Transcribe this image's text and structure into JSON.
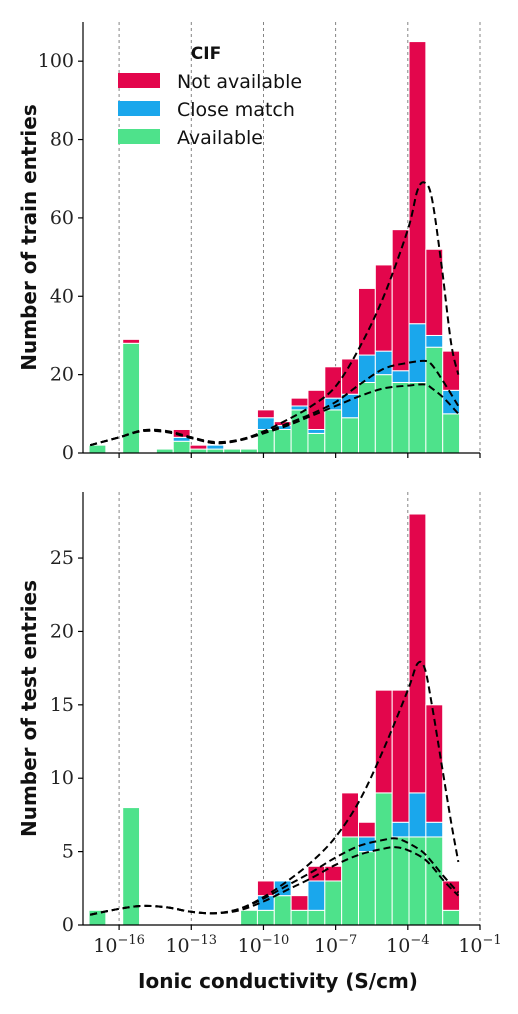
{
  "chart_data": {
    "type": "bar",
    "stacked": true,
    "x_scale": "log",
    "xlabel": "Ionic conductivity (S/cm)",
    "x_ticks": [
      {
        "exp": -16,
        "base": "10",
        "sup": "−16"
      },
      {
        "exp": -13,
        "base": "10",
        "sup": "−13"
      },
      {
        "exp": -10,
        "base": "10",
        "sup": "−10"
      },
      {
        "exp": -7,
        "base": "10",
        "sup": "−7"
      },
      {
        "exp": -4,
        "base": "10",
        "sup": "−4"
      },
      {
        "exp": -1,
        "base": "10",
        "sup": "−1"
      }
    ],
    "xlim_exp": [
      -17.5,
      -1
    ],
    "bin_width_exp": 0.7,
    "colors": {
      "not_available": "#e3064c",
      "close_match": "#1aa7ec",
      "available": "#4ee28b"
    },
    "legend": {
      "title": "CIF",
      "position": "upper-left",
      "entries": [
        {
          "key": "not_available",
          "label": "Not available"
        },
        {
          "key": "close_match",
          "label": "Close match"
        },
        {
          "key": "available",
          "label": "Available"
        }
      ]
    },
    "panels": [
      {
        "ylabel": "Number of train entries",
        "ylim": [
          0,
          110
        ],
        "yticks": [
          0,
          20,
          40,
          60,
          80,
          100
        ],
        "grid": "vertical dashed at x ticks",
        "bins": [
          {
            "x": -16.9,
            "available": 2,
            "close_match": 0,
            "not_available": 0
          },
          {
            "x": -15.5,
            "available": 28,
            "close_match": 0,
            "not_available": 1
          },
          {
            "x": -14.1,
            "available": 1,
            "close_match": 0,
            "not_available": 0
          },
          {
            "x": -13.4,
            "available": 3,
            "close_match": 1,
            "not_available": 2
          },
          {
            "x": -12.7,
            "available": 1,
            "close_match": 0,
            "not_available": 1
          },
          {
            "x": -12.0,
            "available": 1,
            "close_match": 1,
            "not_available": 0
          },
          {
            "x": -11.3,
            "available": 1,
            "close_match": 0,
            "not_available": 0
          },
          {
            "x": -10.6,
            "available": 1,
            "close_match": 0,
            "not_available": 0
          },
          {
            "x": -9.9,
            "available": 6,
            "close_match": 3,
            "not_available": 2
          },
          {
            "x": -9.2,
            "available": 6,
            "close_match": 1,
            "not_available": 1
          },
          {
            "x": -8.5,
            "available": 11,
            "close_match": 1,
            "not_available": 2
          },
          {
            "x": -7.8,
            "available": 5,
            "close_match": 1,
            "not_available": 10
          },
          {
            "x": -7.1,
            "available": 11,
            "close_match": 3,
            "not_available": 8
          },
          {
            "x": -6.4,
            "available": 9,
            "close_match": 6,
            "not_available": 9
          },
          {
            "x": -5.7,
            "available": 18,
            "close_match": 7,
            "not_available": 17
          },
          {
            "x": -5.0,
            "available": 20,
            "close_match": 6,
            "not_available": 22
          },
          {
            "x": -4.3,
            "available": 18,
            "close_match": 3,
            "not_available": 36
          },
          {
            "x": -3.6,
            "available": 18,
            "close_match": 15,
            "not_available": 72
          },
          {
            "x": -2.9,
            "available": 27,
            "close_match": 3,
            "not_available": 22
          },
          {
            "x": -2.2,
            "available": 10,
            "close_match": 6,
            "not_available": 10
          }
        ],
        "kde_curves": [
          {
            "name": "total",
            "points": [
              [
                -17.2,
                2
              ],
              [
                -16,
                4
              ],
              [
                -15,
                5.8
              ],
              [
                -14,
                5.5
              ],
              [
                -13,
                4
              ],
              [
                -12,
                2.5
              ],
              [
                -11,
                3.3
              ],
              [
                -10,
                5.5
              ],
              [
                -9,
                8.5
              ],
              [
                -8,
                12
              ],
              [
                -7,
                17
              ],
              [
                -6,
                27
              ],
              [
                -5,
                40
              ],
              [
                -4,
                57
              ],
              [
                -3.6,
                67
              ],
              [
                -3.3,
                69
              ],
              [
                -3,
                65
              ],
              [
                -2.6,
                48
              ],
              [
                -2.2,
                28
              ],
              [
                -1.9,
                20
              ]
            ]
          },
          {
            "name": "available_close",
            "points": [
              [
                -17.2,
                2
              ],
              [
                -16,
                4
              ],
              [
                -15,
                5.8
              ],
              [
                -14,
                5.6
              ],
              [
                -13,
                4
              ],
              [
                -12,
                2.8
              ],
              [
                -11,
                3.4
              ],
              [
                -10,
                5.2
              ],
              [
                -9,
                7.5
              ],
              [
                -8,
                10
              ],
              [
                -7,
                13
              ],
              [
                -6,
                17.5
              ],
              [
                -5,
                21.5
              ],
              [
                -4,
                23
              ],
              [
                -3.3,
                23.5
              ],
              [
                -3,
                22.5
              ],
              [
                -2.5,
                18
              ],
              [
                -1.9,
                12
              ]
            ]
          },
          {
            "name": "available",
            "points": [
              [
                -17.2,
                2
              ],
              [
                -16,
                4
              ],
              [
                -15,
                5.6
              ],
              [
                -14,
                5.3
              ],
              [
                -13,
                3.8
              ],
              [
                -12,
                2.5
              ],
              [
                -11,
                3.2
              ],
              [
                -10,
                5
              ],
              [
                -9,
                7
              ],
              [
                -8,
                9.5
              ],
              [
                -7,
                12
              ],
              [
                -6,
                14.5
              ],
              [
                -5,
                16.5
              ],
              [
                -4,
                17.2
              ],
              [
                -3.3,
                17.5
              ],
              [
                -3,
                16.5
              ],
              [
                -2.5,
                14
              ],
              [
                -1.9,
                10
              ]
            ]
          }
        ]
      },
      {
        "ylabel": "Number of test entries",
        "ylim": [
          0,
          29.5
        ],
        "yticks": [
          0,
          5,
          10,
          15,
          20,
          25
        ],
        "grid": "vertical dashed at x ticks",
        "bins": [
          {
            "x": -16.9,
            "available": 1,
            "close_match": 0,
            "not_available": 0
          },
          {
            "x": -15.5,
            "available": 8,
            "close_match": 0,
            "not_available": 0
          },
          {
            "x": -10.6,
            "available": 1,
            "close_match": 0,
            "not_available": 0
          },
          {
            "x": -9.9,
            "available": 1,
            "close_match": 1,
            "not_available": 1
          },
          {
            "x": -9.2,
            "available": 2,
            "close_match": 1,
            "not_available": 0
          },
          {
            "x": -8.5,
            "available": 1,
            "close_match": 0,
            "not_available": 1
          },
          {
            "x": -7.8,
            "available": 1,
            "close_match": 2,
            "not_available": 1
          },
          {
            "x": -7.1,
            "available": 3,
            "close_match": 0,
            "not_available": 1
          },
          {
            "x": -6.4,
            "available": 6,
            "close_match": 0,
            "not_available": 3
          },
          {
            "x": -5.7,
            "available": 5,
            "close_match": 1,
            "not_available": 1
          },
          {
            "x": -5.0,
            "available": 9,
            "close_match": 0,
            "not_available": 7
          },
          {
            "x": -4.3,
            "available": 6,
            "close_match": 1,
            "not_available": 9
          },
          {
            "x": -3.6,
            "available": 6,
            "close_match": 3,
            "not_available": 19
          },
          {
            "x": -2.9,
            "available": 6,
            "close_match": 1,
            "not_available": 8
          },
          {
            "x": -2.2,
            "available": 1,
            "close_match": 0,
            "not_available": 2
          }
        ],
        "kde_curves": [
          {
            "name": "total",
            "points": [
              [
                -17.2,
                0.7
              ],
              [
                -16,
                1.1
              ],
              [
                -15,
                1.3
              ],
              [
                -14,
                1.2
              ],
              [
                -13,
                0.9
              ],
              [
                -12,
                0.8
              ],
              [
                -11,
                1.1
              ],
              [
                -10,
                1.9
              ],
              [
                -9,
                3
              ],
              [
                -8,
                4.3
              ],
              [
                -7,
                6
              ],
              [
                -6,
                8.5
              ],
              [
                -5,
                12
              ],
              [
                -4,
                16
              ],
              [
                -3.6,
                17.8
              ],
              [
                -3.3,
                17.5
              ],
              [
                -3,
                15
              ],
              [
                -2.6,
                11
              ],
              [
                -2.2,
                7
              ],
              [
                -1.9,
                4.3
              ]
            ]
          },
          {
            "name": "available_close",
            "points": [
              [
                -17.2,
                0.7
              ],
              [
                -16,
                1.1
              ],
              [
                -15,
                1.3
              ],
              [
                -14,
                1.2
              ],
              [
                -13,
                0.9
              ],
              [
                -12,
                0.8
              ],
              [
                -11,
                1.1
              ],
              [
                -10,
                1.8
              ],
              [
                -9,
                2.7
              ],
              [
                -8,
                3.6
              ],
              [
                -7,
                4.6
              ],
              [
                -6,
                5.4
              ],
              [
                -5,
                5.8
              ],
              [
                -4.5,
                5.9
              ],
              [
                -4,
                5.6
              ],
              [
                -3.4,
                5
              ],
              [
                -3,
                4.3
              ],
              [
                -2.5,
                3.3
              ],
              [
                -1.9,
                2.2
              ]
            ]
          },
          {
            "name": "available",
            "points": [
              [
                -17.2,
                0.7
              ],
              [
                -16,
                1.1
              ],
              [
                -15,
                1.3
              ],
              [
                -14,
                1.2
              ],
              [
                -13,
                0.9
              ],
              [
                -12,
                0.8
              ],
              [
                -11,
                1
              ],
              [
                -10,
                1.6
              ],
              [
                -9,
                2.4
              ],
              [
                -8,
                3.2
              ],
              [
                -7,
                4.1
              ],
              [
                -6,
                4.8
              ],
              [
                -5,
                5.2
              ],
              [
                -4.5,
                5.3
              ],
              [
                -4,
                5.1
              ],
              [
                -3.4,
                4.6
              ],
              [
                -3,
                4
              ],
              [
                -2.5,
                3
              ],
              [
                -1.9,
                2
              ]
            ]
          }
        ]
      }
    ]
  }
}
